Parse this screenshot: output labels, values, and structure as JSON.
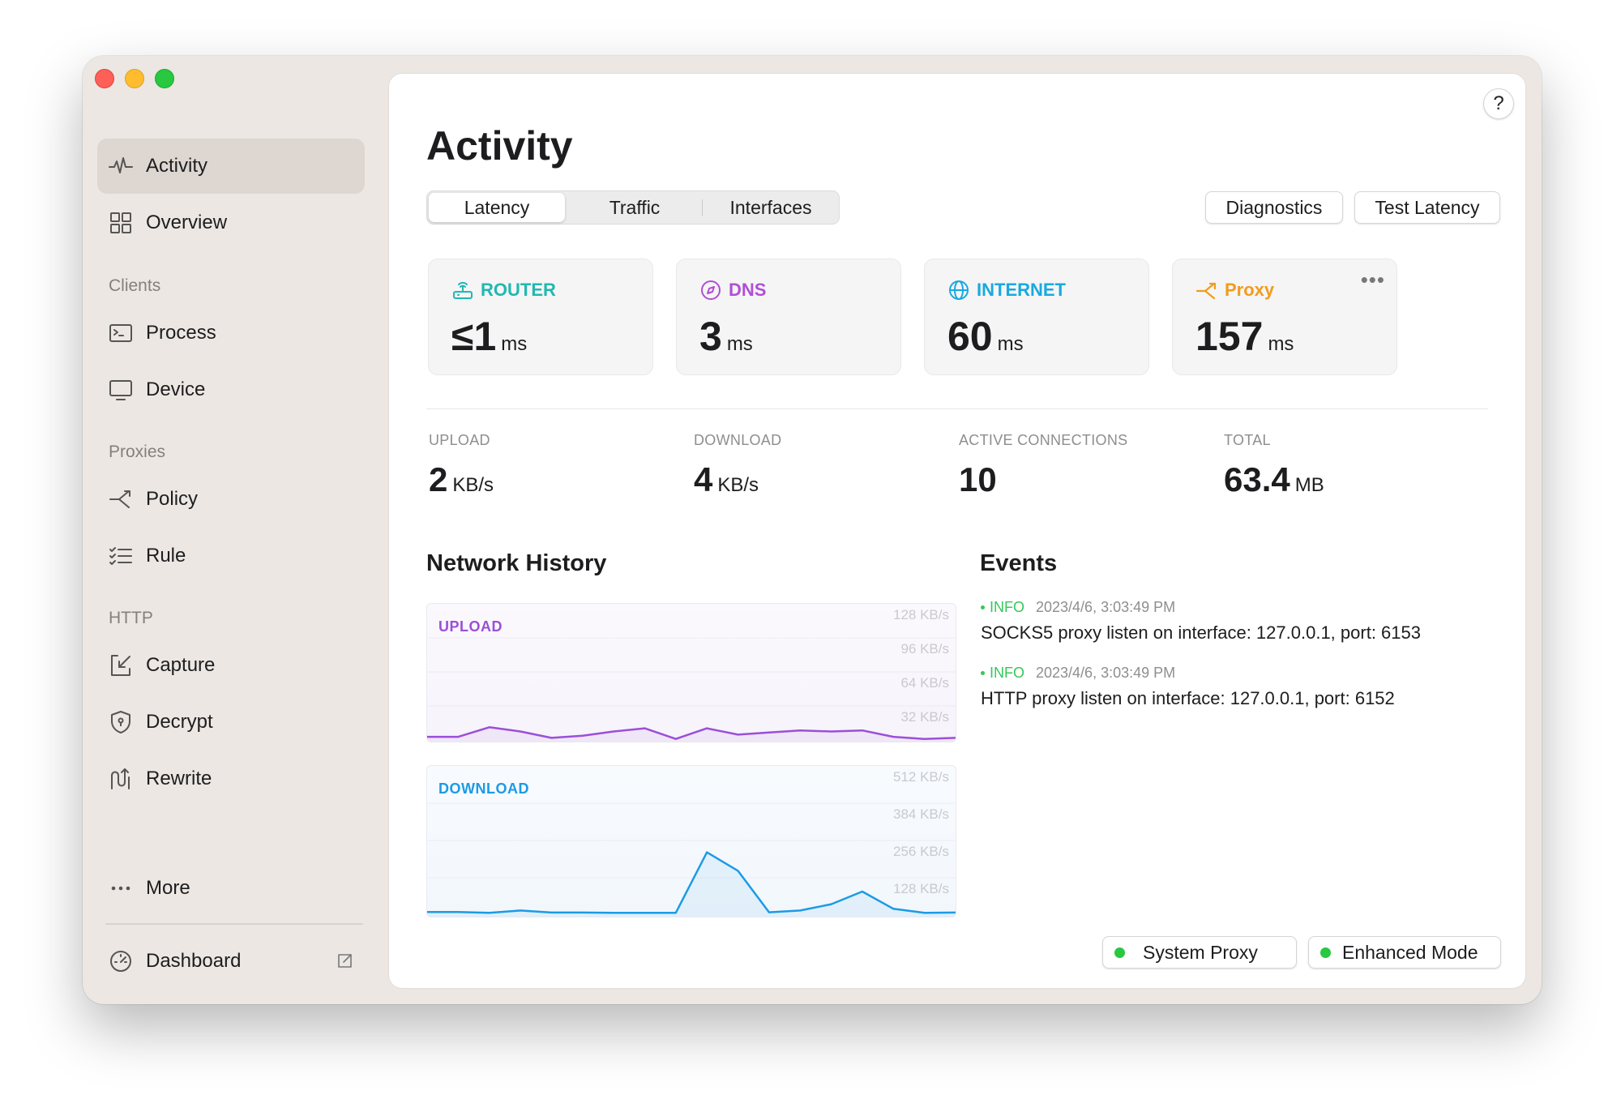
{
  "sidebar": {
    "items": {
      "activity": "Activity",
      "overview": "Overview",
      "process": "Process",
      "device": "Device",
      "policy": "Policy",
      "rule": "Rule",
      "capture": "Capture",
      "decrypt": "Decrypt",
      "rewrite": "Rewrite",
      "more": "More",
      "dashboard": "Dashboard"
    },
    "sections": {
      "clients": "Clients",
      "proxies": "Proxies",
      "http": "HTTP"
    }
  },
  "main": {
    "title": "Activity",
    "help": "?",
    "tabs": [
      "Latency",
      "Traffic",
      "Interfaces"
    ],
    "selected_tab": "Latency",
    "buttons": {
      "diagnostics": "Diagnostics",
      "test_latency": "Test Latency"
    },
    "latency": [
      {
        "label": "ROUTER",
        "value": "≤1",
        "unit": "ms",
        "color": "#21b8b1"
      },
      {
        "label": "DNS",
        "value": "3",
        "unit": "ms",
        "color": "#b04fd6"
      },
      {
        "label": "INTERNET",
        "value": "60",
        "unit": "ms",
        "color": "#18a9e0"
      },
      {
        "label": "Proxy",
        "value": "157",
        "unit": "ms",
        "color": "#f29b1d"
      }
    ],
    "stats": [
      {
        "label": "UPLOAD",
        "value": "2",
        "unit": "KB/s"
      },
      {
        "label": "DOWNLOAD",
        "value": "4",
        "unit": "KB/s"
      },
      {
        "label": "ACTIVE CONNECTIONS",
        "value": "10",
        "unit": ""
      },
      {
        "label": "TOTAL",
        "value": "63.4",
        "unit": "MB"
      }
    ],
    "network_history": {
      "title": "Network History",
      "upload": {
        "label": "UPLOAD",
        "color": "#9b4fd8",
        "ticks": [
          "128 KB/s",
          "96 KB/s",
          "64 KB/s",
          "32 KB/s"
        ],
        "max": 128,
        "values": [
          3,
          3,
          12,
          8,
          2,
          4,
          8,
          11,
          1,
          11,
          5,
          7,
          9,
          8,
          9,
          3,
          1,
          2
        ]
      },
      "download": {
        "label": "DOWNLOAD",
        "color": "#1b9be6",
        "ticks": [
          "512 KB/s",
          "384 KB/s",
          "256 KB/s",
          "128 KB/s"
        ],
        "max": 512,
        "values": [
          5,
          5,
          2,
          10,
          3,
          3,
          2,
          2,
          2,
          212,
          148,
          4,
          10,
          32,
          76,
          16,
          2,
          3
        ]
      }
    },
    "events": {
      "title": "Events",
      "items": [
        {
          "level": "INFO",
          "time": "2023/4/6, 3:03:49 PM",
          "message": "SOCKS5 proxy listen on interface: 127.0.0.1, port: 6153"
        },
        {
          "level": "INFO",
          "time": "2023/4/6, 3:03:49 PM",
          "message": "HTTP proxy listen on interface: 127.0.0.1, port: 6152"
        }
      ]
    },
    "status": {
      "system_proxy": "System Proxy",
      "enhanced_mode": "Enhanced Mode",
      "status_color": "#28c840"
    }
  }
}
